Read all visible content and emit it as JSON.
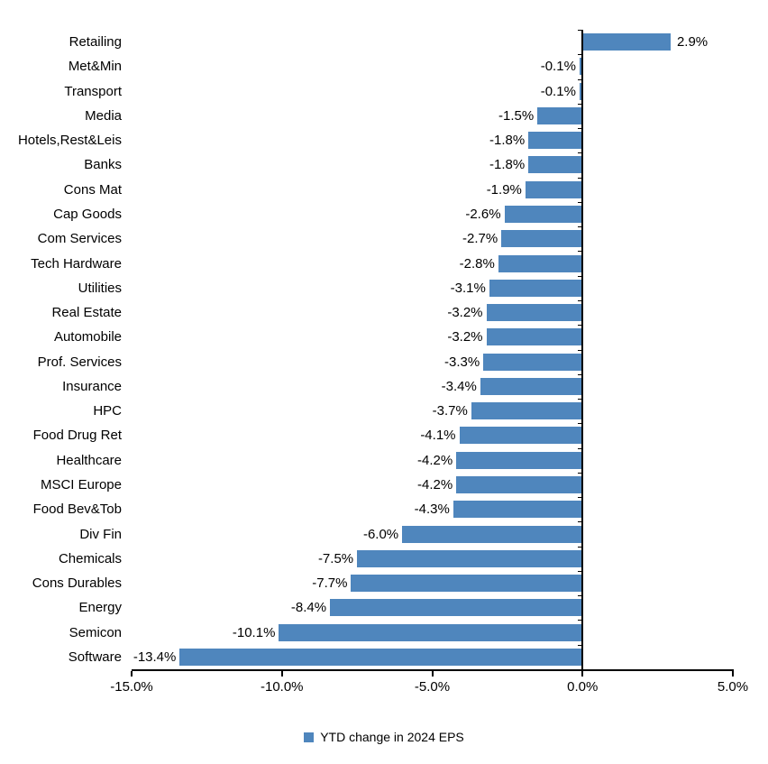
{
  "chart_data": {
    "type": "bar",
    "orientation": "horizontal",
    "title": "",
    "xlabel": "",
    "ylabel": "",
    "categories": [
      "Retailing",
      "Met&Min",
      "Transport",
      "Media",
      "Hotels,Rest&Leis",
      "Banks",
      "Cons Mat",
      "Cap Goods",
      "Com Services",
      "Tech Hardware",
      "Utilities",
      "Real Estate",
      "Automobile",
      "Prof. Services",
      "Insurance",
      "HPC",
      "Food Drug Ret",
      "Healthcare",
      "MSCI Europe",
      "Food Bev&Tob",
      "Div Fin",
      "Chemicals",
      "Cons Durables",
      "Energy",
      "Semicon",
      "Software"
    ],
    "values": [
      2.9,
      -0.1,
      -0.1,
      -1.5,
      -1.8,
      -1.8,
      -1.9,
      -2.6,
      -2.7,
      -2.8,
      -3.1,
      -3.2,
      -3.2,
      -3.3,
      -3.4,
      -3.7,
      -4.1,
      -4.2,
      -4.2,
      -4.3,
      -6.0,
      -7.5,
      -7.7,
      -8.4,
      -10.1,
      -13.4
    ],
    "value_labels": [
      "2.9%",
      "-0.1%",
      "-0.1%",
      "-1.5%",
      "-1.8%",
      "-1.8%",
      "-1.9%",
      "-2.6%",
      "-2.7%",
      "-2.8%",
      "-3.1%",
      "-3.2%",
      "-3.2%",
      "-3.3%",
      "-3.4%",
      "-3.7%",
      "-4.1%",
      "-4.2%",
      "-4.2%",
      "-4.3%",
      "-6.0%",
      "-7.5%",
      "-7.7%",
      "-8.4%",
      "-10.1%",
      "-13.4%"
    ],
    "x_tick_values": [
      -15,
      -10,
      -5,
      0,
      5
    ],
    "x_tick_labels": [
      "-15.0%",
      "-10.0%",
      "-5.0%",
      "0.0%",
      "5.0%"
    ],
    "xlim": [
      -15,
      5
    ],
    "grid": false,
    "bar_color": "#4F86BD",
    "axis_color": "#000000",
    "text_color": "#000000",
    "legend_position": "bottom-center",
    "legend": {
      "marker_color": "#4F86BD",
      "label": "YTD change in 2024 EPS"
    }
  }
}
